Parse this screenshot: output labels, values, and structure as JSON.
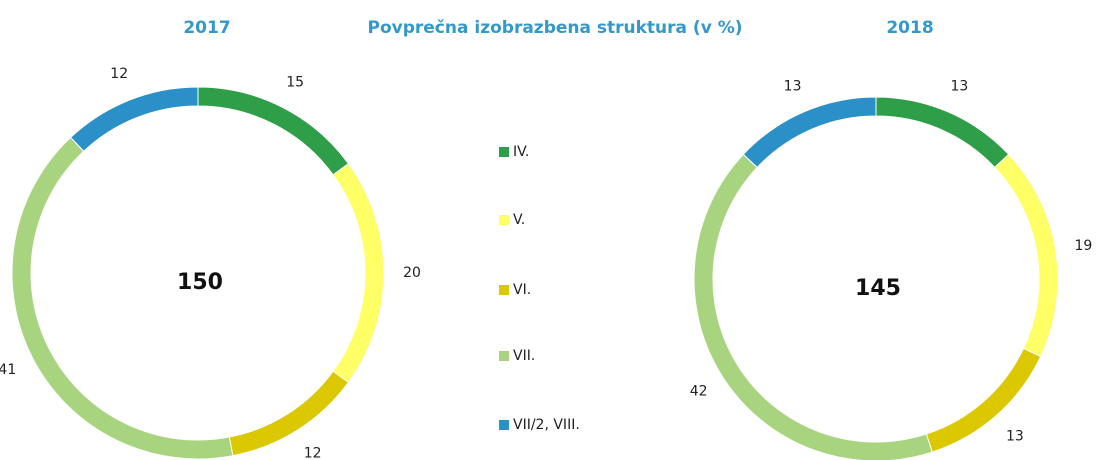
{
  "title": "Povprečna izobrazbena struktura (v %)",
  "legend": {
    "categories": [
      "IV.",
      "V.",
      "VI.",
      "VII.",
      "VII/2, VIII."
    ],
    "colors": [
      "#2e9e48",
      "#ffff66",
      "#dcc800",
      "#a9d47f",
      "#2b8fc8"
    ]
  },
  "chart_data": [
    {
      "type": "pie",
      "title": "2017",
      "center_value": 150,
      "values": [
        15,
        20,
        12,
        41,
        12
      ]
    },
    {
      "type": "pie",
      "title": "2018",
      "center_value": 145,
      "values": [
        13,
        19,
        13,
        42,
        13
      ]
    }
  ]
}
